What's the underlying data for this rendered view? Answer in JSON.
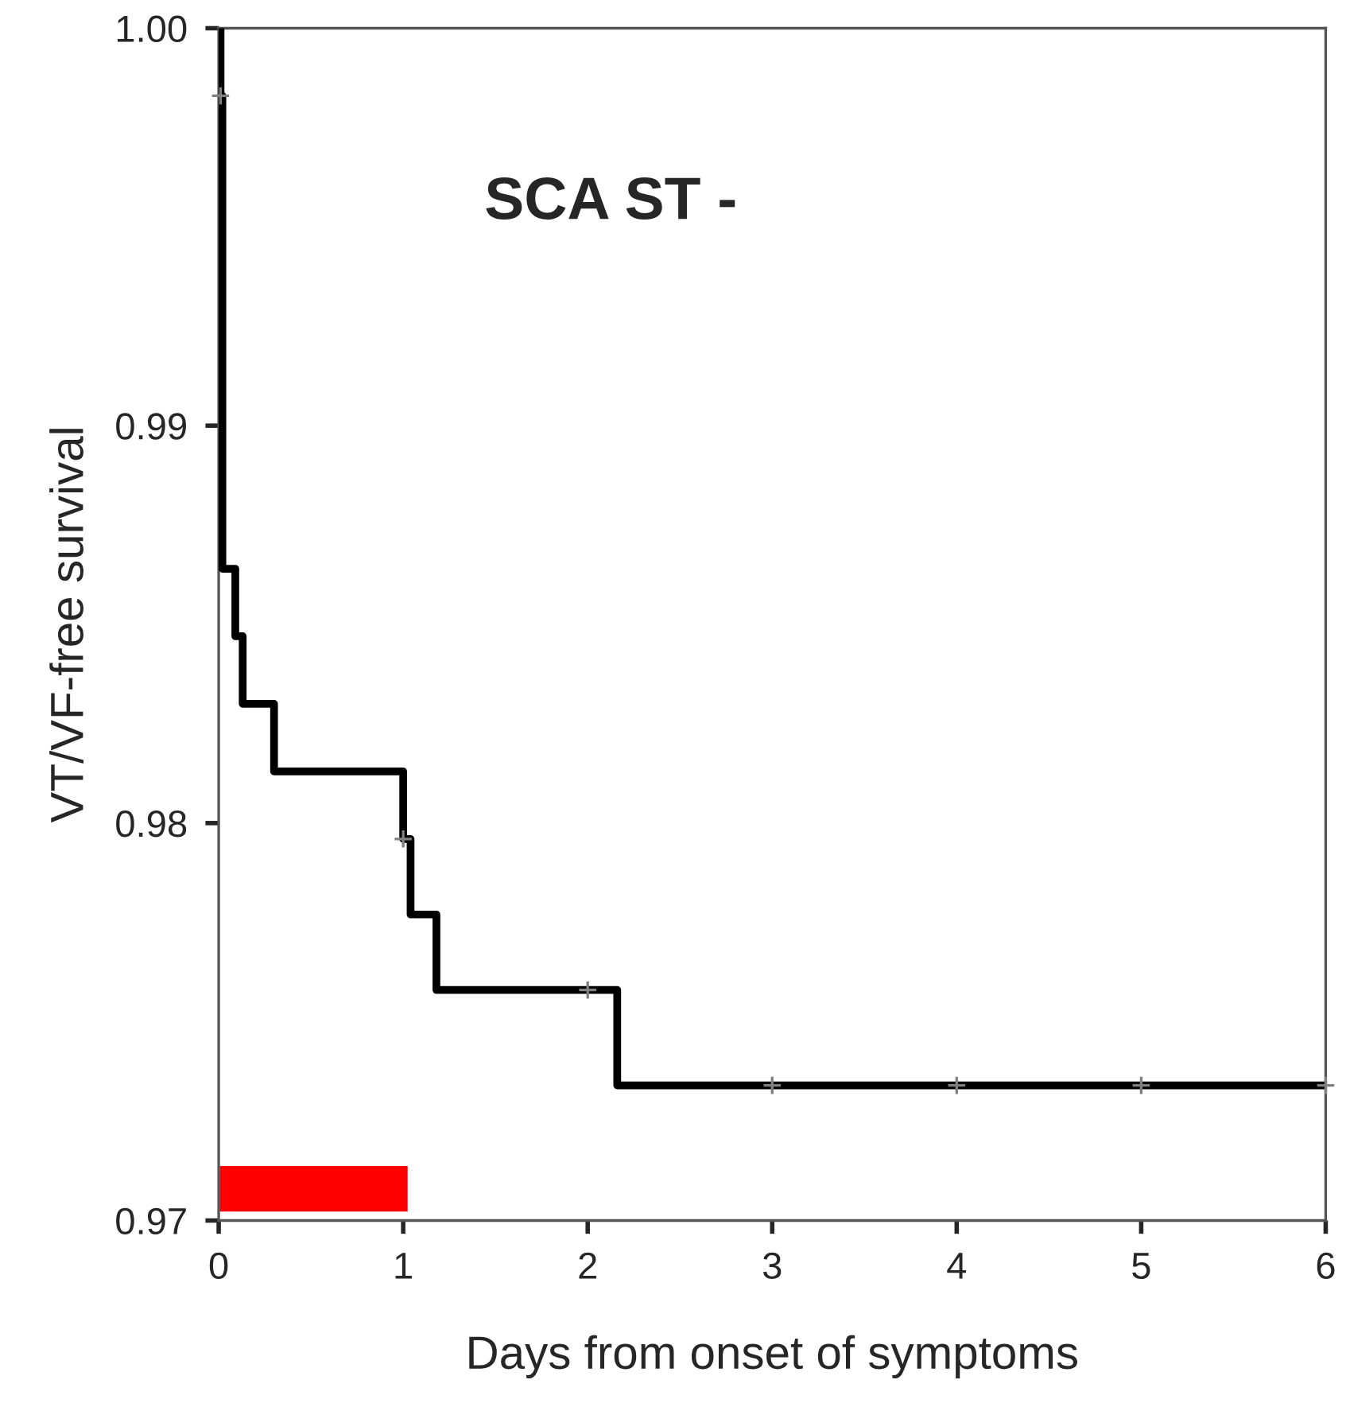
{
  "chart_data": {
    "type": "step",
    "xlabel": "Days from onset of symptoms",
    "ylabel": "VT/VF-free survival",
    "annotations": [
      "SCA ST -"
    ],
    "xlim": [
      0,
      6
    ],
    "xticks": [
      0,
      1,
      2,
      3,
      4,
      5,
      6
    ],
    "ylim": [
      0.97,
      1.0
    ],
    "yticks": [
      {
        "value": 0.97,
        "label": "0.97"
      },
      {
        "value": 0.98,
        "label": "0.98"
      },
      {
        "value": 0.99,
        "label": "0.99"
      },
      {
        "value": 1.0,
        "label": "1.00"
      }
    ],
    "grid": false,
    "legend": false,
    "series": [
      {
        "color": "#000000",
        "line_style": "solid",
        "x": [
          0,
          0.01,
          0.02,
          0.09,
          0.13,
          0.3,
          1.0,
          1.04,
          1.18,
          2.16,
          6
        ],
        "values": [
          1.0,
          0.9983,
          0.9864,
          0.9847,
          0.983,
          0.9813,
          0.9796,
          0.9777,
          0.9758,
          0.9734,
          0.9734
        ]
      },
      {
        "type": "scatter",
        "color": "#808080",
        "marker": "cross",
        "x": [
          0.01,
          1.0,
          2.0,
          3.0,
          4.0,
          5.0,
          6.0
        ],
        "values": [
          0.9983,
          0.9796,
          0.9758,
          0.9734,
          0.9734,
          0.9734,
          0.9734
        ]
      },
      {
        "type": "bar",
        "color": "#ff0000",
        "x": [
          0.515
        ],
        "base": [
          0.9702
        ],
        "values": [
          0.0012
        ]
      }
    ]
  }
}
